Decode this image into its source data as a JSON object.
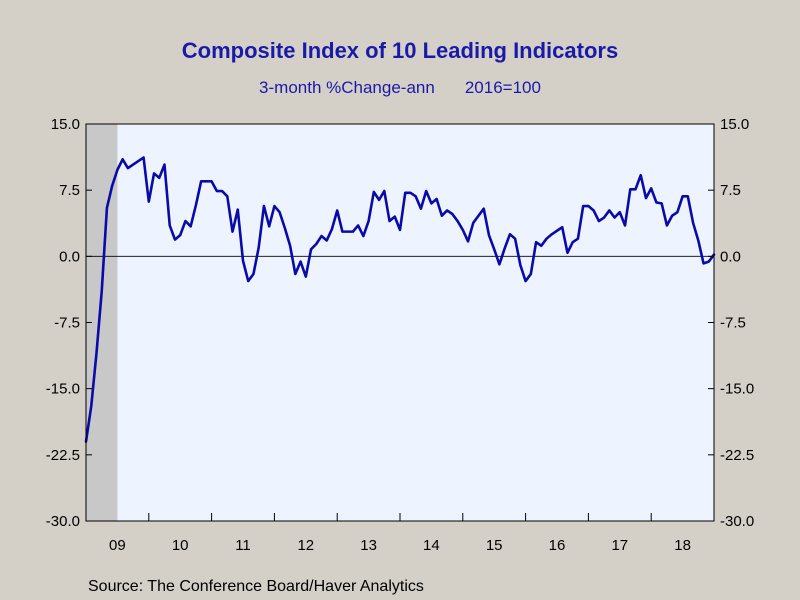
{
  "chart_data": {
    "type": "line",
    "title": "Composite Index of 10 Leading Indicators",
    "subtitle_left": "3-month %Change-ann",
    "subtitle_right": "2016=100",
    "source": "Source:  The Conference Board/Haver Analytics",
    "ylim": [
      -30,
      15
    ],
    "y_ticks": [
      15,
      7.5,
      0,
      -7.5,
      -15,
      -22.5,
      -30
    ],
    "y_tick_labels": [
      "15.0",
      "7.5",
      "0.0",
      "-7.5",
      "-15.0",
      "-22.5",
      "-30.0"
    ],
    "x_year_start": 2009,
    "x_labels": [
      "09",
      "10",
      "11",
      "12",
      "13",
      "14",
      "15",
      "16",
      "17",
      "18"
    ],
    "zero_line": true,
    "recession_shading": [
      [
        2009.0,
        2009.5
      ]
    ],
    "colors": {
      "line": "#0a0aa8",
      "plot_bg": "#eef4ff",
      "recession": "#c8c8c8",
      "axis": "#000000",
      "title": "#1a1aa8"
    },
    "series": [
      {
        "values": [
          -21.0,
          -17.0,
          -11.0,
          -4.0,
          5.5,
          8.0,
          9.8,
          11.0,
          10.0,
          10.4,
          10.8,
          11.2,
          6.2,
          9.4,
          8.9,
          10.4,
          3.5,
          1.9,
          2.4,
          4.0,
          3.4,
          5.8,
          8.5,
          8.5,
          8.5,
          7.4,
          7.4,
          6.8,
          2.8,
          5.3,
          -0.5,
          -2.8,
          -2.0,
          1.0,
          5.7,
          3.4,
          5.7,
          5.0,
          3.2,
          1.2,
          -2.0,
          -0.6,
          -2.3,
          0.8,
          1.4,
          2.3,
          1.8,
          3.1,
          5.2,
          2.8,
          2.8,
          2.8,
          3.5,
          2.3,
          4.0,
          7.3,
          6.4,
          7.4,
          4.0,
          4.5,
          3.0,
          7.2,
          7.2,
          6.8,
          5.4,
          7.4,
          6.0,
          6.5,
          4.6,
          5.2,
          4.8,
          4.0,
          3.0,
          1.7,
          3.8,
          4.6,
          5.4,
          2.4,
          0.8,
          -0.9,
          0.9,
          2.5,
          2.0,
          -1.0,
          -2.8,
          -2.0,
          1.6,
          1.2,
          2.0,
          2.5,
          2.9,
          3.3,
          0.4,
          1.6,
          2.0,
          5.7,
          5.7,
          5.2,
          4.0,
          4.4,
          5.2,
          4.4,
          5.0,
          3.5,
          7.6,
          7.6,
          9.2,
          6.6,
          7.7,
          6.1,
          6.0,
          3.5,
          4.6,
          5.0,
          6.8,
          6.8,
          3.8,
          1.8,
          -0.8,
          -0.6,
          0.2
        ]
      }
    ]
  }
}
